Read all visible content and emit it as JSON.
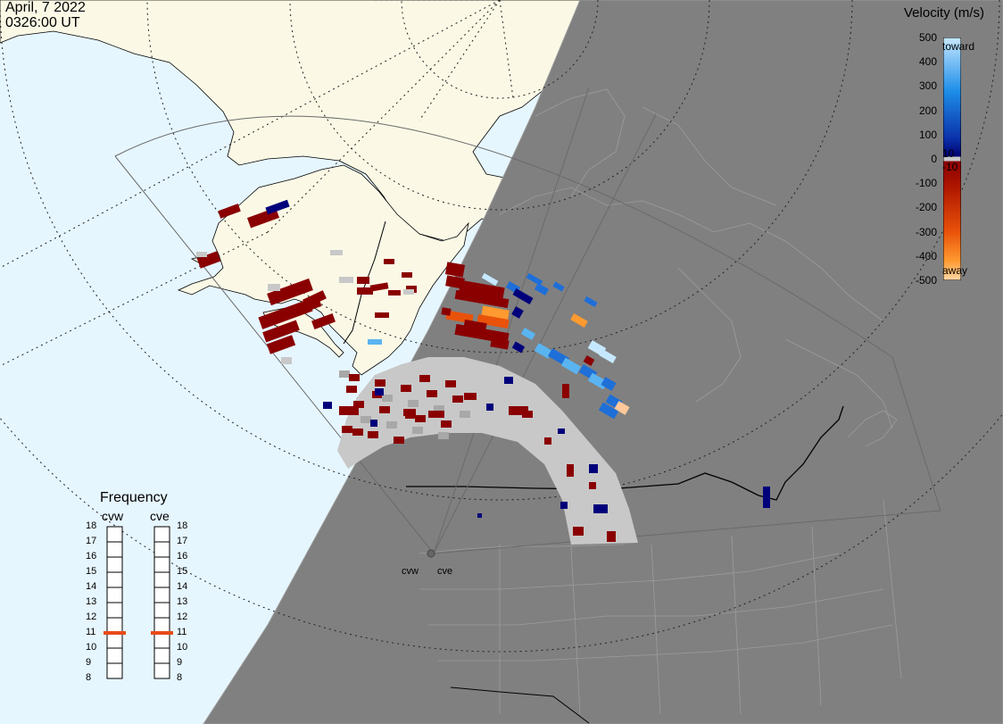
{
  "header": {
    "date": "April, 7 2022",
    "time": "0326:00 UT"
  },
  "colorbar": {
    "title": "Velocity (m/s)",
    "ticks": [
      "500",
      "400",
      "300",
      "200",
      "100",
      "0",
      "-100",
      "-200",
      "-300",
      "-400",
      "-500"
    ],
    "toward_label": "toward",
    "away_label": "away",
    "ground_scatter_upper": "10",
    "ground_scatter_lower": "-10",
    "colors": {
      "toward_high": "#c6e8ff",
      "toward_mid": "#1e8ee8",
      "toward_low": "#00006e",
      "away_low": "#8a0000",
      "away_mid": "#e8520a",
      "away_high": "#ffd8a8",
      "ground_scatter": "#c8c8c8"
    }
  },
  "frequency_panel": {
    "title": "Frequency",
    "radars": [
      {
        "name": "cvw",
        "selected_mhz": 11
      },
      {
        "name": "cve",
        "selected_mhz": 11
      }
    ],
    "scale": [
      "18",
      "17",
      "16",
      "15",
      "14",
      "13",
      "12",
      "11",
      "10",
      "9",
      "8"
    ],
    "marker_color": "#e84a1a"
  },
  "map": {
    "ocean_color": "#e6f6ff",
    "land_color": "#fbf9e6",
    "night_color": "#808080",
    "night_border_color": "#9a9a9a",
    "radar_sites": [
      {
        "label": "cvw"
      },
      {
        "label": "cve"
      }
    ]
  }
}
